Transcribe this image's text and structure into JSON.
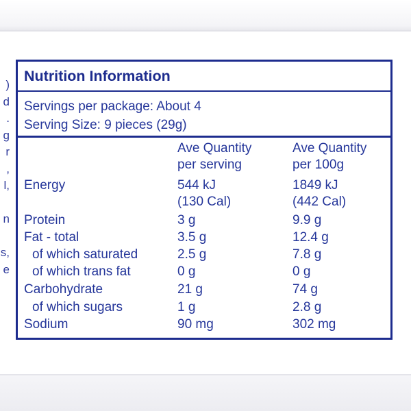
{
  "left_fragments": [
    ")",
    "d",
    ".",
    "g",
    "r",
    ",",
    "l,",
    "",
    "n",
    "",
    "s,",
    "e"
  ],
  "panel": {
    "title": "Nutrition Information",
    "servings_per_package": "Servings per package: About 4",
    "serving_size": "Serving Size: 9 pieces (29g)",
    "column_headers": [
      {
        "line1": "Ave Quantity",
        "line2": "per serving"
      },
      {
        "line1": "Ave Quantity",
        "line2": "per 100g"
      }
    ],
    "rows": [
      {
        "label": "Energy",
        "per_serving": "544 kJ",
        "per_serving_sub": "(130 Cal)",
        "per_100g": "1849 kJ",
        "per_100g_sub": "(442 Cal)"
      },
      {
        "label": "Protein",
        "per_serving": "3 g",
        "per_100g": "9.9 g"
      },
      {
        "label": "Fat - total",
        "per_serving": "3.5 g",
        "per_100g": "12.4 g"
      },
      {
        "label": "of which saturated",
        "per_serving": "2.5 g",
        "per_100g": "7.8 g"
      },
      {
        "label": "of which trans fat",
        "per_serving": "0 g",
        "per_100g": "0 g"
      },
      {
        "label": "Carbohydrate",
        "per_serving": "21 g",
        "per_100g": "74 g"
      },
      {
        "label": "of which sugars",
        "per_serving": "1 g",
        "per_100g": "2.8 g"
      },
      {
        "label": "Sodium",
        "per_serving": "90 mg",
        "per_100g": "302 mg"
      }
    ]
  },
  "colors": {
    "ink": "#1d2c8e",
    "text": "#25369a",
    "background": "#ffffff"
  }
}
